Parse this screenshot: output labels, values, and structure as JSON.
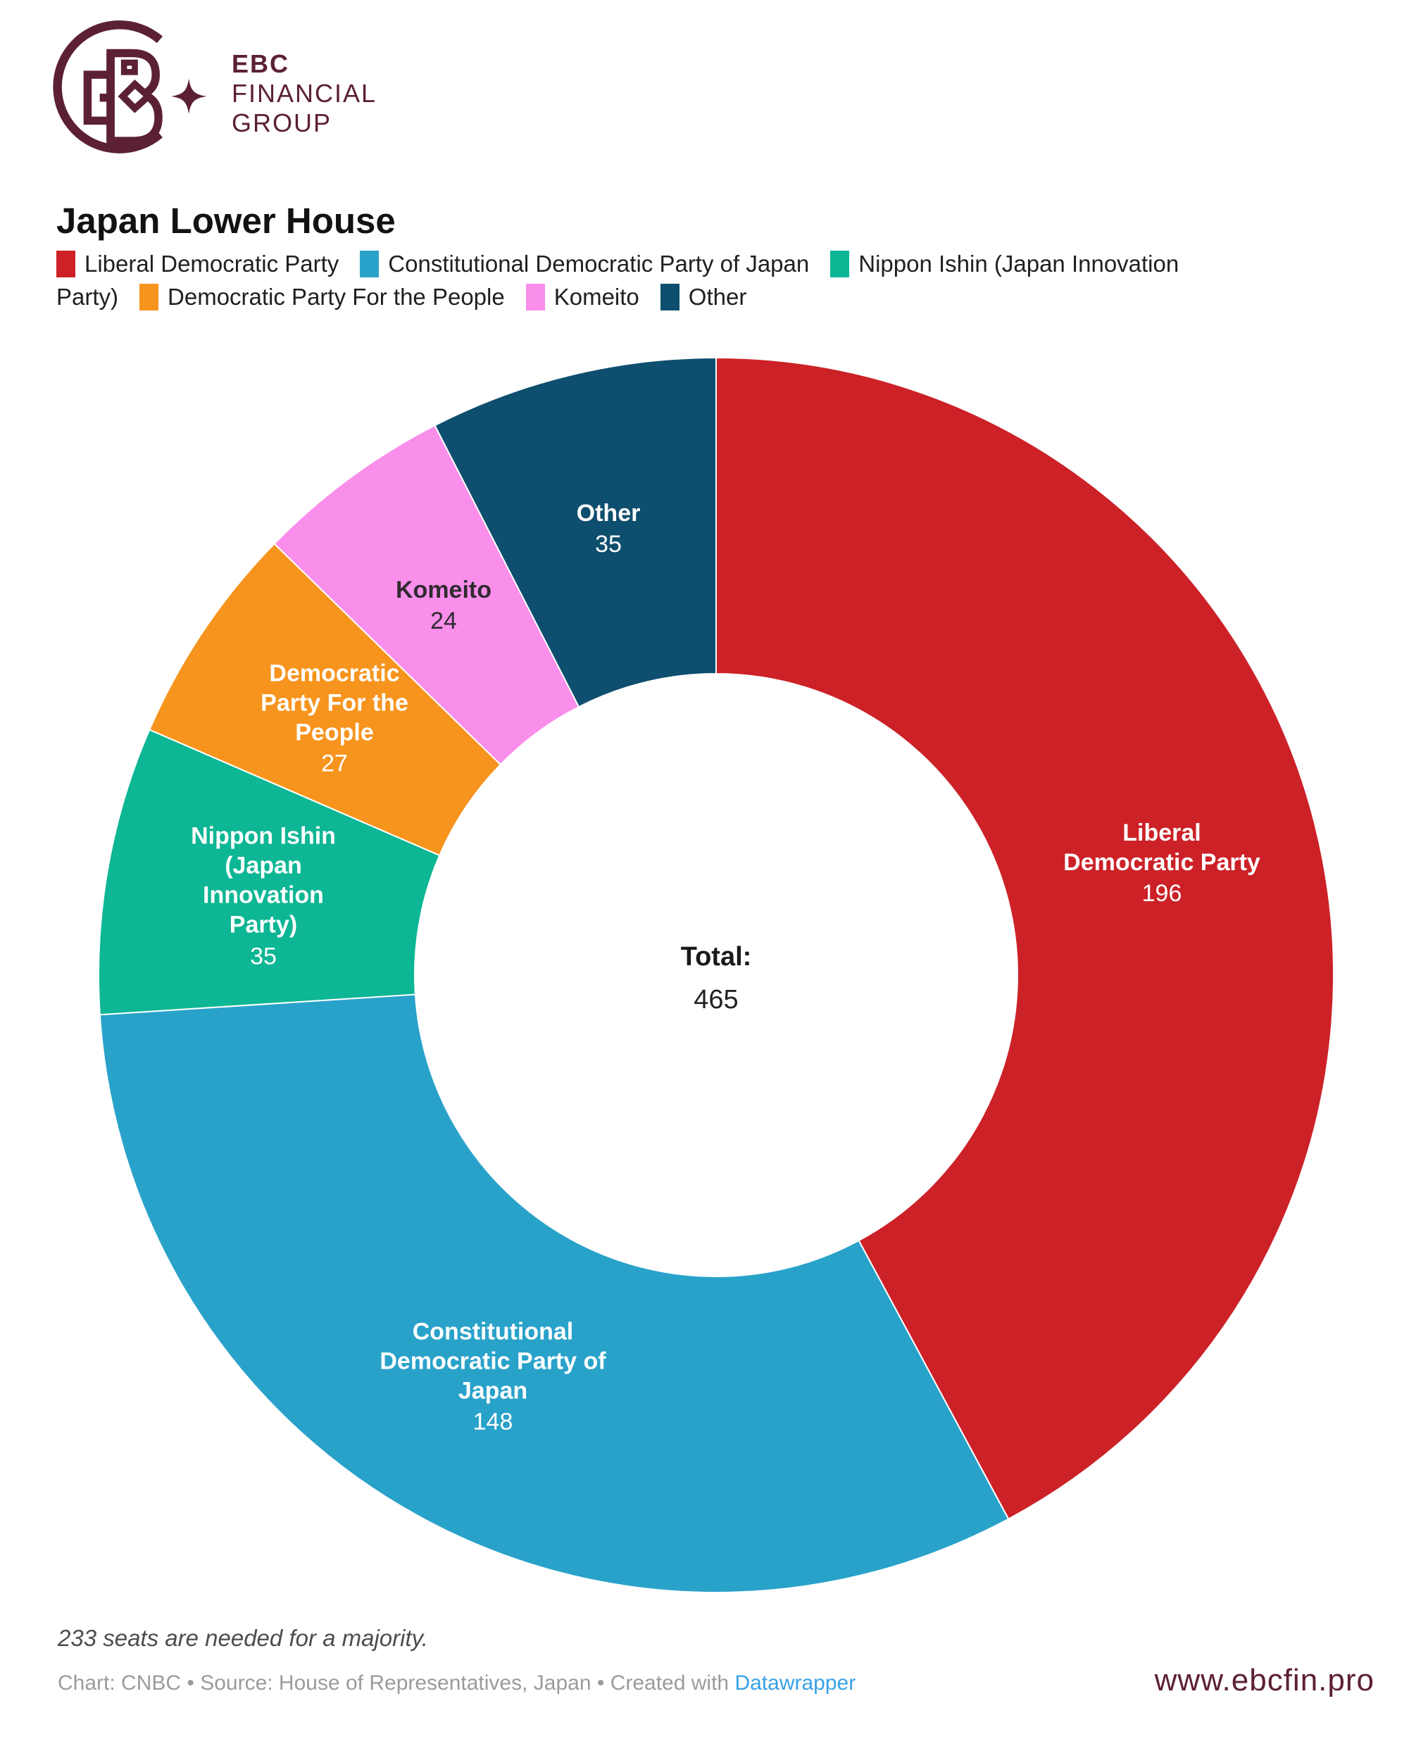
{
  "branding": {
    "name_lines": [
      "EBC",
      "FINANCIAL",
      "GROUP"
    ],
    "brand_color": "#5C2035",
    "website": "www.ebcfin.pro"
  },
  "title": "Japan Lower House",
  "legend": {
    "rows": [
      {
        "items": [
          {
            "label": "Liberal Democratic Party",
            "color": "#CC2127"
          },
          {
            "label": "Constitutional Democratic Party of Japan",
            "color": "#29A2CA"
          },
          {
            "label": "Nippon Ishin (Japan Innovation",
            "color": "#0DB694"
          }
        ]
      },
      {
        "items": [
          {
            "label": "Party)"
          },
          {
            "label": "Democratic Party For the People",
            "color": "#F7941D"
          },
          {
            "label": "Komeito",
            "color": "#F98EEB"
          },
          {
            "label": "Other",
            "color": "#0E4E6E"
          }
        ]
      }
    ]
  },
  "chart_data": {
    "type": "pie",
    "subtype": "donut",
    "title": "Japan Lower House",
    "total_label": "Total:",
    "total": 465,
    "start_angle_deg": 0,
    "direction": "clockwise",
    "annotation": "233 seats are needed for a majority.",
    "segments": [
      {
        "label": "Liberal Democratic Party",
        "value": 196,
        "color": "#CC2127",
        "text_color": "#FFFFFF",
        "display_lines": [
          "Liberal",
          "Democratic Party"
        ]
      },
      {
        "label": "Constitutional Democratic Party of Japan",
        "value": 148,
        "color": "#29A2CA",
        "text_color": "#FFFFFF",
        "display_lines": [
          "Constitutional",
          "Democratic Party of",
          "Japan"
        ]
      },
      {
        "label": "Nippon Ishin (Japan Innovation Party)",
        "value": 35,
        "color": "#0DB694",
        "text_color": "#FFFFFF",
        "display_lines": [
          "Nippon Ishin",
          "(Japan",
          "Innovation",
          "Party)"
        ]
      },
      {
        "label": "Democratic Party For the People",
        "value": 27,
        "color": "#F7941D",
        "text_color": "#FFFFFF",
        "display_lines": [
          "Democratic",
          "Party For the",
          "People"
        ]
      },
      {
        "label": "Komeito",
        "value": 24,
        "color": "#F98EEB",
        "text_color": "#2F2B2F",
        "display_lines": [
          "Komeito"
        ]
      },
      {
        "label": "Other",
        "value": 35,
        "color": "#0E4E6E",
        "text_color": "#FFFFFF",
        "display_lines": [
          "Other"
        ]
      }
    ]
  },
  "footer": {
    "note": "233 seats are needed for a majority.",
    "attribution_prefix": "Chart: CNBC • Source: House of Representatives, Japan • Created with ",
    "attribution_link": "Datawrapper"
  }
}
